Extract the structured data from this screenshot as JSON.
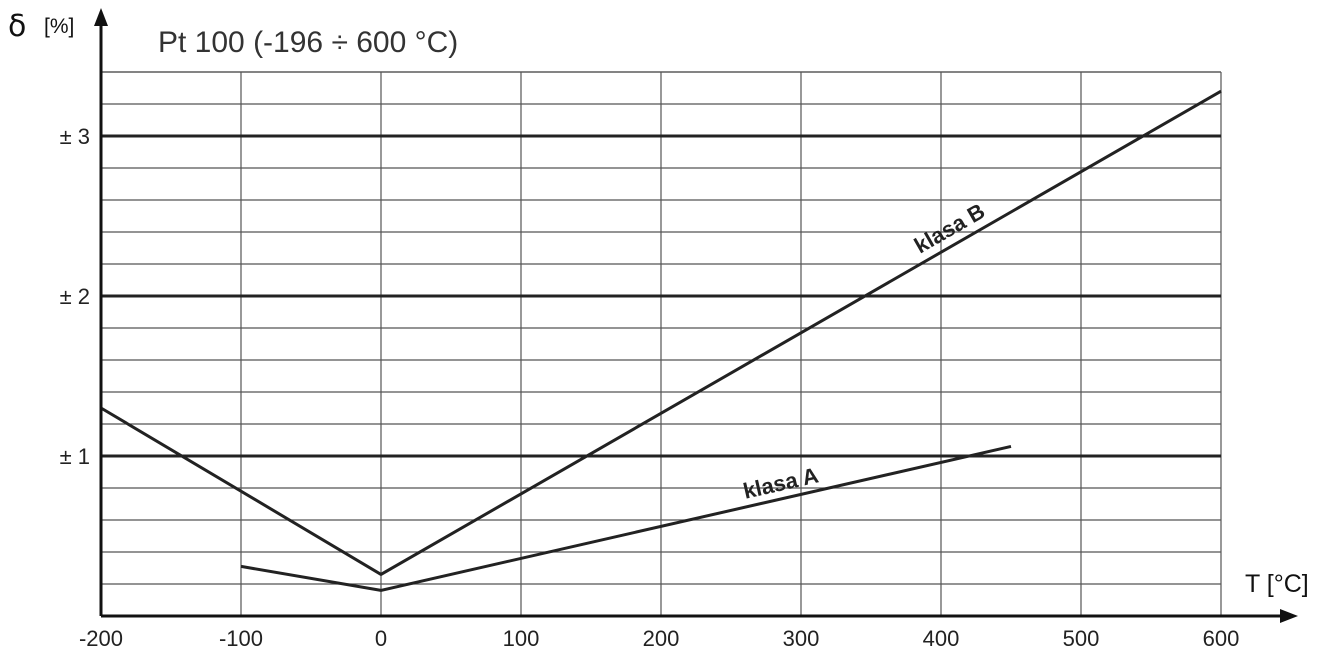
{
  "chart_data": {
    "type": "line",
    "title": "Pt 100 (-196 ÷ 600 °C)",
    "ylabel": "δ",
    "ylabel_unit": "[%]",
    "xlabel": "T [°C]",
    "xlim": [
      -200,
      600
    ],
    "ylim": [
      0,
      3.4
    ],
    "x_ticks": [
      -200,
      -100,
      0,
      100,
      200,
      300,
      400,
      500,
      600
    ],
    "x_tick_labels": [
      "-200",
      "-100",
      "0",
      "100",
      "200",
      "300",
      "400",
      "500",
      "600"
    ],
    "y_ticks": [
      1,
      2,
      3
    ],
    "y_tick_labels": [
      "± 1",
      "± 2",
      "± 3"
    ],
    "grid": true,
    "series": [
      {
        "name": "klasa B",
        "x": [
          -200,
          0,
          600
        ],
        "y": [
          1.3,
          0.26,
          3.28
        ]
      },
      {
        "name": "klasa A",
        "x": [
          -100,
          0,
          450
        ],
        "y": [
          0.31,
          0.16,
          1.06
        ]
      }
    ]
  }
}
